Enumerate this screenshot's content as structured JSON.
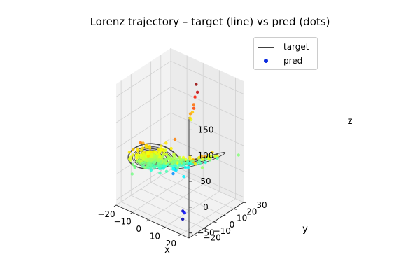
{
  "chart_data": {
    "type": "scatter3d",
    "title": "Lorenz trajectory – target (line) vs pred (dots)",
    "xlabel": "x",
    "ylabel": "y",
    "zlabel": "z",
    "xlim": [
      -20,
      25
    ],
    "ylim": [
      -25,
      30
    ],
    "zlim": [
      -60,
      175
    ],
    "xticks": [
      "−20",
      "−10",
      "0",
      "10",
      "20"
    ],
    "yticks": [
      "−20",
      "−10",
      "0",
      "10",
      "20",
      "30"
    ],
    "zticks": [
      "−50",
      "0",
      "50",
      "100",
      "150"
    ],
    "grid": true,
    "legend_position": "top-right",
    "series": [
      {
        "name": "target",
        "kind": "line",
        "color": "#404040"
      },
      {
        "name": "pred",
        "kind": "points",
        "color": "#0b2be0",
        "colormap": "jet"
      }
    ]
  }
}
